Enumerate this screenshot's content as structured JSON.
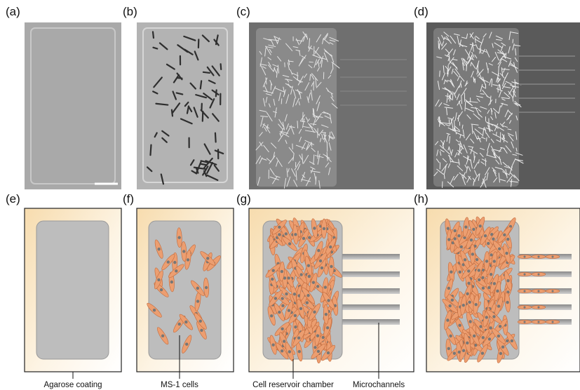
{
  "panel_labels": [
    "(a)",
    "(b)",
    "(c)",
    "(d)",
    "(e)",
    "(f)",
    "(g)",
    "(h)"
  ],
  "annotations": [
    "Agarose coating",
    "MS-1 cells",
    "Cell reservoir chamber",
    "Microchannels"
  ]
}
